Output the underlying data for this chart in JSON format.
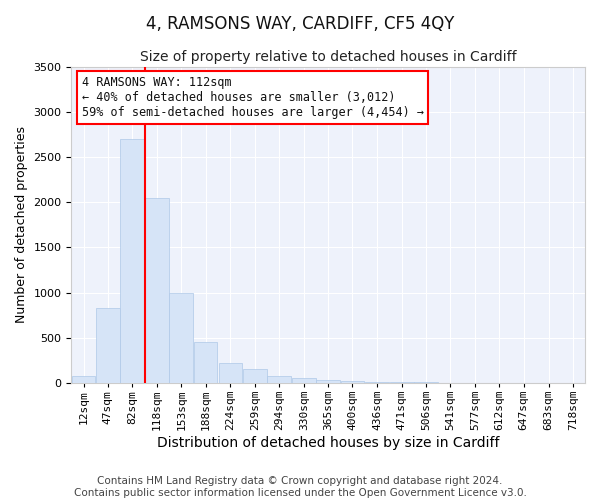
{
  "title": "4, RAMSONS WAY, CARDIFF, CF5 4QY",
  "subtitle": "Size of property relative to detached houses in Cardiff",
  "xlabel": "Distribution of detached houses by size in Cardiff",
  "ylabel": "Number of detached properties",
  "bins": [
    12,
    47,
    82,
    118,
    153,
    188,
    224,
    259,
    294,
    330,
    365,
    400,
    436,
    471,
    506,
    541,
    577,
    612,
    647,
    683,
    718
  ],
  "bar_heights": [
    75,
    825,
    2700,
    2050,
    1000,
    450,
    225,
    150,
    75,
    50,
    30,
    20,
    15,
    10,
    8,
    5,
    4,
    3,
    2,
    2
  ],
  "bar_color": "#d6e4f7",
  "bar_edge_color": "#aec8e8",
  "vline_x": 118,
  "vline_color": "red",
  "ylim": [
    0,
    3500
  ],
  "yticks": [
    0,
    500,
    1000,
    1500,
    2000,
    2500,
    3000,
    3500
  ],
  "annotation_box_text": "4 RAMSONS WAY: 112sqm\n← 40% of detached houses are smaller (3,012)\n59% of semi-detached houses are larger (4,454) →",
  "annotation_box_color": "red",
  "footer_line1": "Contains HM Land Registry data © Crown copyright and database right 2024.",
  "footer_line2": "Contains public sector information licensed under the Open Government Licence v3.0.",
  "bg_color": "#eef2fb",
  "fig_bg_color": "#ffffff",
  "grid_color": "#ffffff",
  "title_fontsize": 12,
  "subtitle_fontsize": 10,
  "xlabel_fontsize": 10,
  "ylabel_fontsize": 9,
  "tick_fontsize": 8,
  "footer_fontsize": 7.5,
  "annotation_fontsize": 8.5
}
